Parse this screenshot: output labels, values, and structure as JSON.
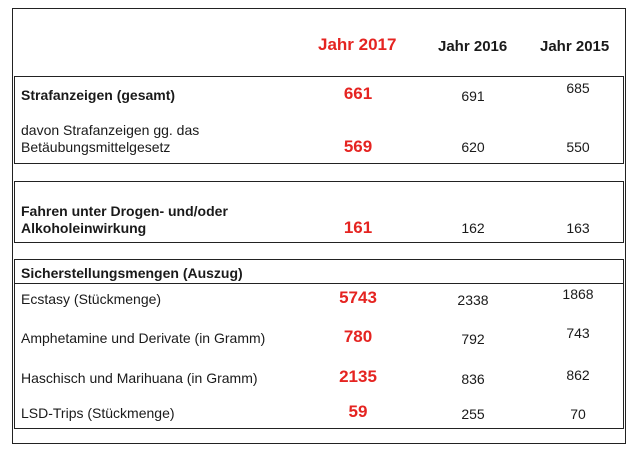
{
  "header": {
    "col2017": "Jahr 2017",
    "col2016": "Jahr 2016",
    "col2015": "Jahr 2015"
  },
  "rows": [
    {
      "label": "Strafanzeigen (gesamt)",
      "v2017": "661",
      "v2016": "691",
      "v2015": "685"
    },
    {
      "label": "davon Strafanzeigen gg. das Betäubungsmittelgesetz",
      "v2017": "569",
      "v2016": "620",
      "v2015": "550"
    },
    {
      "label": "Fahren unter Drogen- und/oder Alkoholeinwirkung",
      "v2017": "161",
      "v2016": "162",
      "v2015": "163"
    },
    {
      "label": "Sicherstellungsmengen (Auszug)"
    },
    {
      "label": "Ecstasy (Stückmenge)",
      "v2017": "5743",
      "v2016": "2338",
      "v2015": "1868"
    },
    {
      "label": "Amphetamine und Derivate (in Gramm)",
      "v2017": "780",
      "v2016": "792",
      "v2015": "743"
    },
    {
      "label": "Haschisch und Marihuana (in Gramm)",
      "v2017": "2135",
      "v2016": "836",
      "v2015": "862"
    },
    {
      "label": "LSD-Trips (Stückmenge)",
      "v2017": "59",
      "v2016": "255",
      "v2015": "70"
    }
  ]
}
